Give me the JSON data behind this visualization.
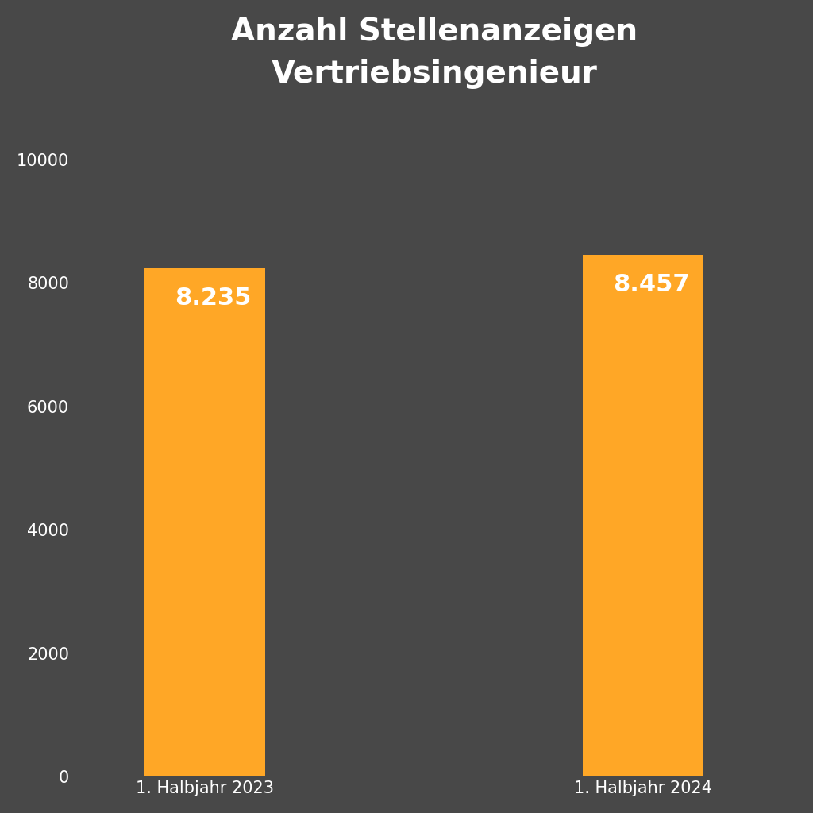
{
  "title": "Anzahl Stellenanzeigen\nVertriebsingenieur",
  "categories": [
    "1. Halbjahr 2023",
    "1. Halbjahr 2024"
  ],
  "values": [
    8235,
    8457
  ],
  "labels": [
    "8.235",
    "8.457"
  ],
  "bar_color": "#FFA726",
  "background_color": "#484848",
  "text_color": "#FFFFFF",
  "tick_color": "#FFFFFF",
  "title_fontsize": 28,
  "label_fontsize": 22,
  "tick_fontsize": 15,
  "xlabel_fontsize": 15,
  "ylim": [
    0,
    10800
  ],
  "yticks": [
    0,
    2000,
    4000,
    6000,
    8000,
    10000
  ]
}
